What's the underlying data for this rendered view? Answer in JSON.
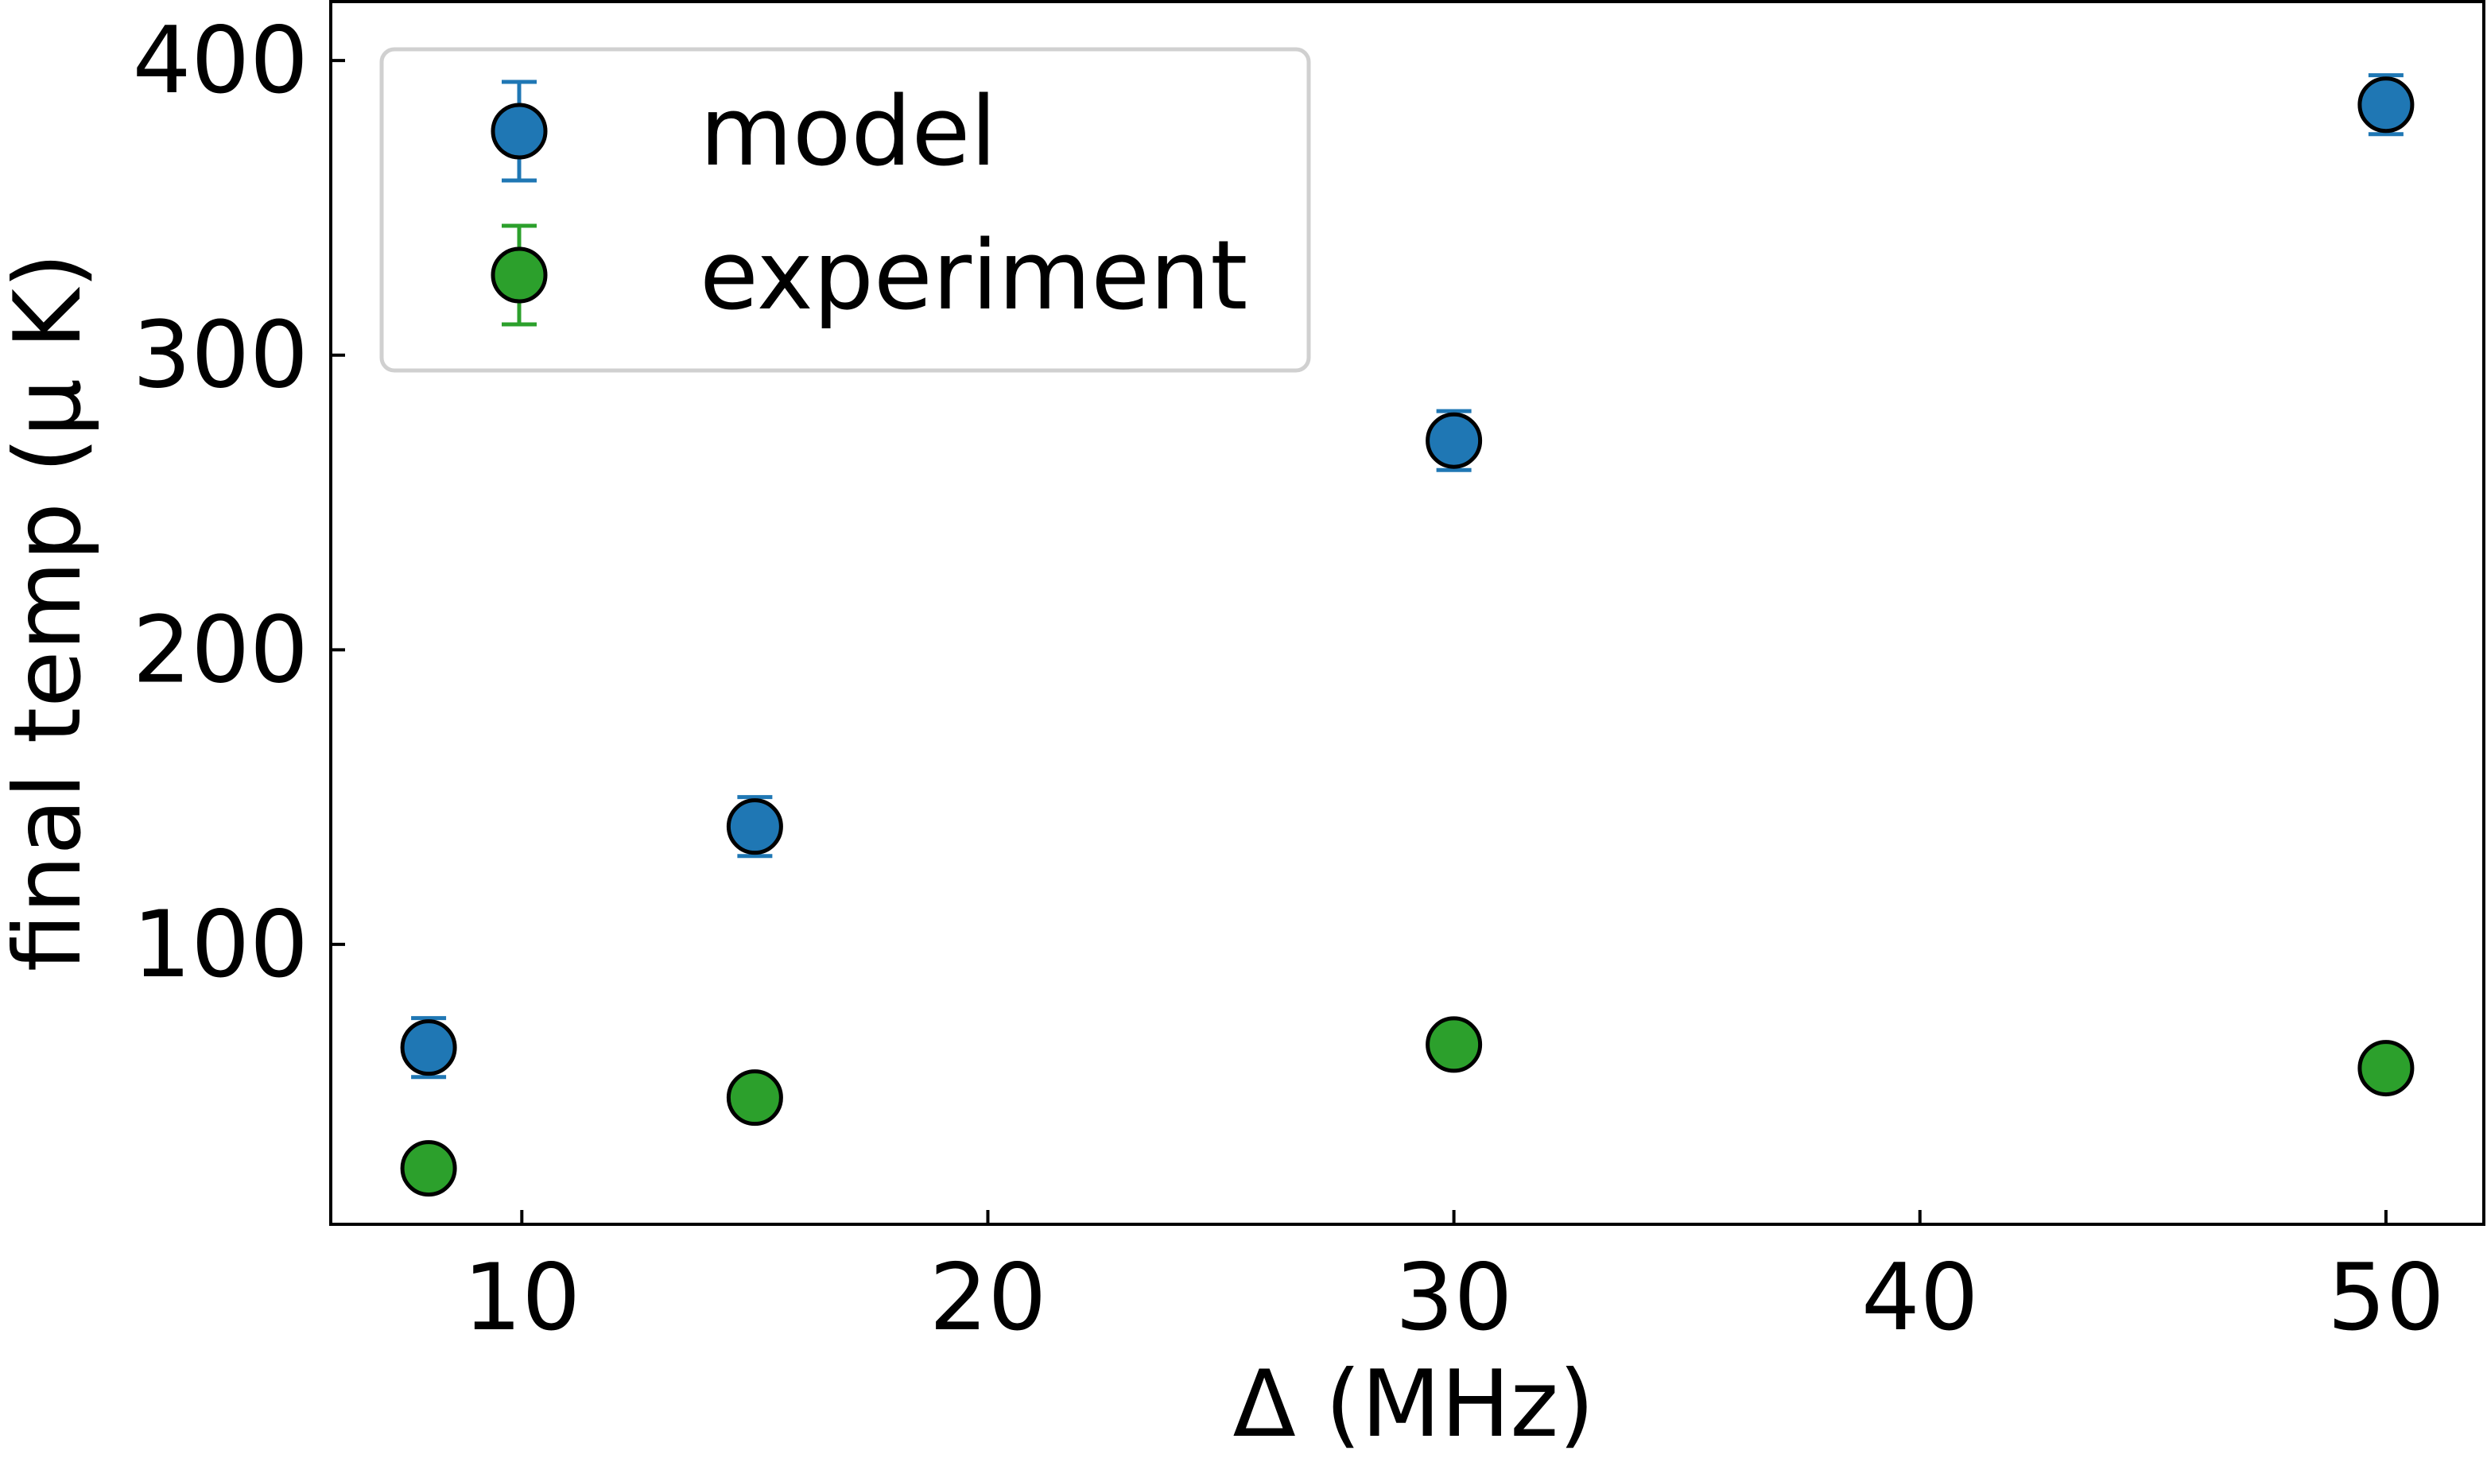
{
  "chart_data": {
    "type": "scatter",
    "title": "",
    "xlabel": "Δ (MHz)",
    "ylabel": "final temp (μ K)",
    "xlim": [
      5.9,
      52.1
    ],
    "ylim": [
      5,
      420
    ],
    "xticks": [
      10,
      20,
      30,
      40,
      50
    ],
    "yticks": [
      100,
      200,
      300,
      400
    ],
    "grid": false,
    "legend": {
      "position": "top-left"
    },
    "error_bars": true,
    "series": [
      {
        "name": "model",
        "color": "#1f77b4",
        "x": [
          8,
          15,
          30,
          50
        ],
        "y": [
          65,
          140,
          271,
          385
        ],
        "yerr": [
          10,
          10,
          10,
          10
        ]
      },
      {
        "name": "experiment",
        "color": "#2ca02c",
        "x": [
          8,
          15,
          30,
          50
        ],
        "y": [
          24,
          48,
          66,
          58
        ],
        "yerr": [
          null,
          null,
          null,
          null
        ]
      }
    ]
  }
}
